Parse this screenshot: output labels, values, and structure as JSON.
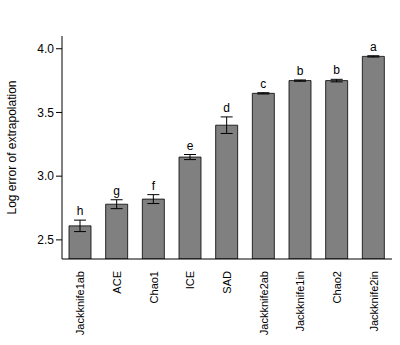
{
  "chart_data": {
    "type": "bar",
    "ylabel": "Log error of extrapolation",
    "categories": [
      "Jackknife1ab",
      "ACE",
      "Chao1",
      "ICE",
      "SAD",
      "Jackknife2ab",
      "Jackknife1in",
      "Chao2",
      "Jackknife2in"
    ],
    "values": [
      2.61,
      2.78,
      2.82,
      3.15,
      3.4,
      3.65,
      3.75,
      3.75,
      3.94
    ],
    "errors": [
      0.045,
      0.035,
      0.035,
      0.02,
      0.065,
      0.005,
      0.005,
      0.01,
      0.005
    ],
    "annotations": [
      "h",
      "g",
      "f",
      "e",
      "d",
      "c",
      "b",
      "b",
      "a"
    ],
    "color": "#808080",
    "ylim": [
      2.35,
      4.1
    ],
    "yticks": [
      2.5,
      {
        "value": 3.0,
        "label": "3.0"
      },
      3.5,
      {
        "value": 4.0,
        "label": "4.0"
      }
    ],
    "grid": false
  }
}
